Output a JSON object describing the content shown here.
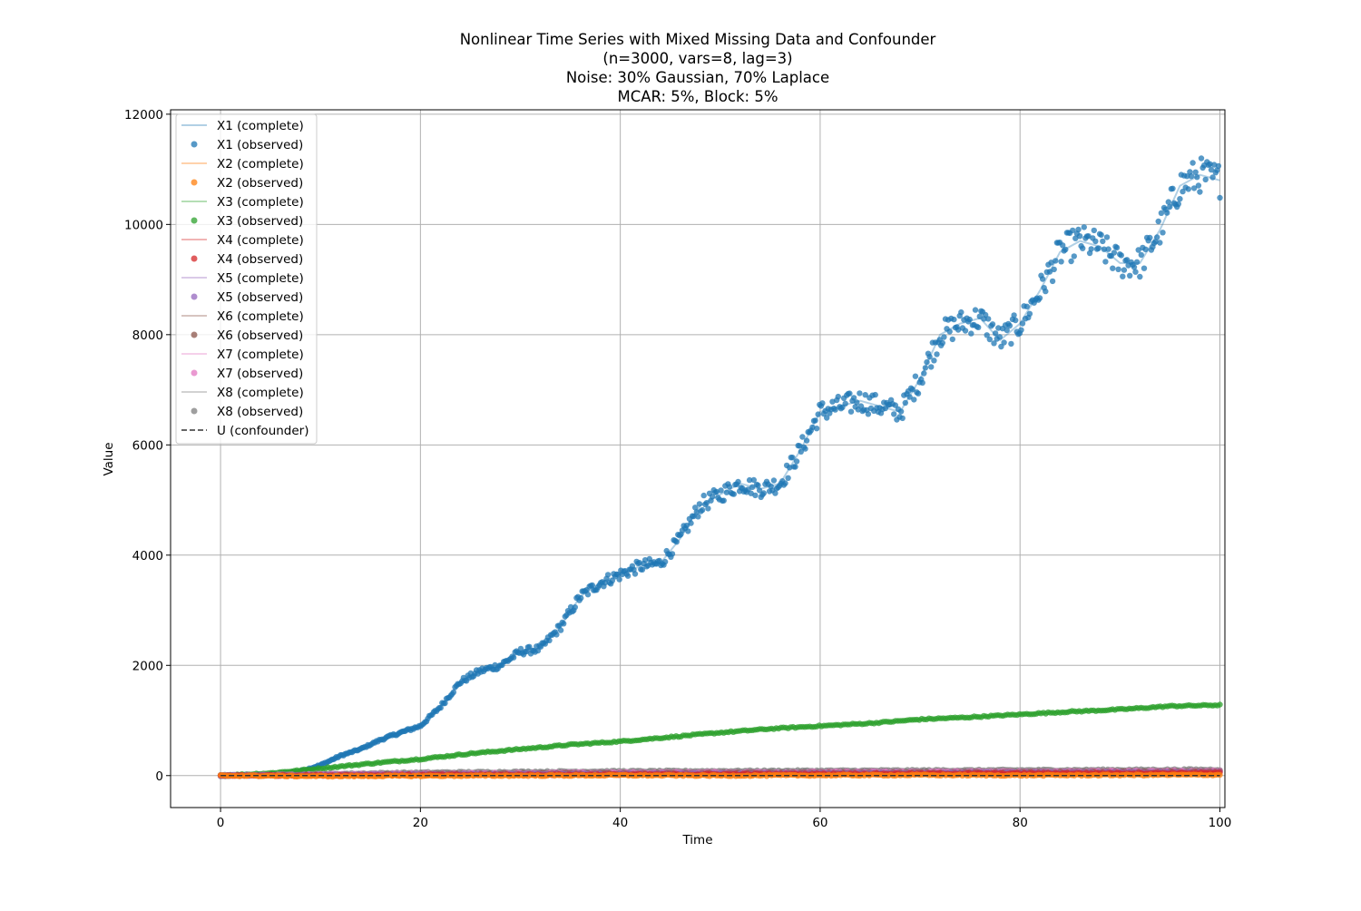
{
  "chart_data": {
    "type": "scatter",
    "title_lines": [
      "Nonlinear Time Series with Mixed Missing Data and Confounder",
      "(n=3000, vars=8, lag=3)",
      "Noise: 30% Gaussian, 70% Laplace",
      "MCAR: 5%, Block: 5%"
    ],
    "xlabel": "Time",
    "ylabel": "Value",
    "xlim": [
      -5,
      100.5
    ],
    "ylim": [
      -580,
      12080
    ],
    "xticks": [
      0,
      20,
      40,
      60,
      80,
      100
    ],
    "yticks": [
      0,
      2000,
      4000,
      6000,
      8000,
      10000,
      12000
    ],
    "grid": true,
    "legend_position": "upper-left",
    "legend": [
      {
        "label": "X1 (complete)",
        "kind": "line",
        "color": "#1f77b4"
      },
      {
        "label": "X1 (observed)",
        "kind": "marker",
        "color": "#1f77b4"
      },
      {
        "label": "X2 (complete)",
        "kind": "line",
        "color": "#ff7f0e"
      },
      {
        "label": "X2 (observed)",
        "kind": "marker",
        "color": "#ff7f0e"
      },
      {
        "label": "X3 (complete)",
        "kind": "line",
        "color": "#2ca02c"
      },
      {
        "label": "X3 (observed)",
        "kind": "marker",
        "color": "#2ca02c"
      },
      {
        "label": "X4 (complete)",
        "kind": "line",
        "color": "#d62728"
      },
      {
        "label": "X4 (observed)",
        "kind": "marker",
        "color": "#d62728"
      },
      {
        "label": "X5 (complete)",
        "kind": "line",
        "color": "#9467bd"
      },
      {
        "label": "X5 (observed)",
        "kind": "marker",
        "color": "#9467bd"
      },
      {
        "label": "X6 (complete)",
        "kind": "line",
        "color": "#8c564b"
      },
      {
        "label": "X6 (observed)",
        "kind": "marker",
        "color": "#8c564b"
      },
      {
        "label": "X7 (complete)",
        "kind": "line",
        "color": "#e377c2"
      },
      {
        "label": "X7 (observed)",
        "kind": "marker",
        "color": "#e377c2"
      },
      {
        "label": "X8 (complete)",
        "kind": "line",
        "color": "#7f7f7f"
      },
      {
        "label": "X8 (observed)",
        "kind": "marker",
        "color": "#7f7f7f"
      },
      {
        "label": "U (confounder)",
        "kind": "dashed",
        "color": "#333333"
      }
    ],
    "series": [
      {
        "name": "X1",
        "color": "#1f77b4",
        "x": [
          0,
          2,
          4,
          6,
          8,
          10,
          12,
          14,
          16,
          18,
          20,
          22,
          24,
          26,
          28,
          30,
          32,
          34,
          36,
          38,
          40,
          42,
          44,
          46,
          48,
          50,
          52,
          54,
          56,
          58,
          60,
          62,
          64,
          66,
          68,
          70,
          72,
          74,
          76,
          78,
          80,
          82,
          84,
          86,
          88,
          90,
          92,
          94,
          96,
          98,
          100
        ],
        "y": [
          0,
          5,
          15,
          35,
          80,
          190,
          360,
          480,
          650,
          780,
          900,
          1250,
          1700,
          1900,
          2000,
          2250,
          2300,
          2700,
          3250,
          3500,
          3650,
          3800,
          3850,
          4300,
          4900,
          5100,
          5300,
          5200,
          5300,
          5900,
          6600,
          6700,
          6800,
          6700,
          6600,
          7200,
          8000,
          8200,
          8300,
          7900,
          8200,
          8800,
          9500,
          9700,
          9600,
          9300,
          9300,
          9900,
          10700,
          10900,
          10800
        ]
      },
      {
        "name": "X3",
        "color": "#2ca02c",
        "x": [
          0,
          5,
          10,
          15,
          20,
          25,
          30,
          35,
          40,
          45,
          50,
          55,
          60,
          65,
          70,
          75,
          80,
          85,
          90,
          95,
          100
        ],
        "y": [
          0,
          45,
          130,
          220,
          300,
          400,
          480,
          560,
          620,
          700,
          780,
          850,
          900,
          950,
          1020,
          1060,
          1110,
          1160,
          1200,
          1260,
          1280
        ]
      },
      {
        "name": "X8",
        "color": "#7f7f7f",
        "x": [
          0,
          10,
          20,
          30,
          40,
          50,
          60,
          70,
          80,
          90,
          100
        ],
        "y": [
          0,
          30,
          55,
          70,
          80,
          85,
          90,
          95,
          100,
          105,
          110
        ]
      },
      {
        "name": "X7",
        "color": "#e377c2",
        "x": [
          0,
          10,
          20,
          30,
          40,
          50,
          60,
          70,
          80,
          90,
          100
        ],
        "y": [
          0,
          20,
          35,
          45,
          55,
          60,
          65,
          70,
          75,
          80,
          85
        ]
      },
      {
        "name": "X6",
        "color": "#8c564b",
        "x": [
          0,
          10,
          20,
          30,
          40,
          50,
          60,
          70,
          80,
          90,
          100
        ],
        "y": [
          0,
          15,
          25,
          35,
          40,
          45,
          50,
          55,
          60,
          65,
          70
        ]
      },
      {
        "name": "X5",
        "color": "#9467bd",
        "x": [
          0,
          10,
          20,
          30,
          40,
          50,
          60,
          70,
          80,
          90,
          100
        ],
        "y": [
          0,
          10,
          20,
          25,
          30,
          35,
          40,
          45,
          50,
          55,
          60
        ]
      },
      {
        "name": "X4",
        "color": "#d62728",
        "x": [
          0,
          10,
          20,
          30,
          40,
          50,
          60,
          70,
          80,
          90,
          100
        ],
        "y": [
          0,
          5,
          10,
          15,
          20,
          25,
          30,
          35,
          40,
          45,
          50
        ]
      },
      {
        "name": "X2",
        "color": "#ff7f0e",
        "x": [
          0,
          10,
          20,
          30,
          40,
          50,
          60,
          70,
          80,
          90,
          100
        ],
        "y": [
          0,
          -10,
          -5,
          0,
          5,
          0,
          5,
          10,
          5,
          10,
          15
        ]
      },
      {
        "name": "U",
        "color": "#333333",
        "style": "dashed",
        "x": [
          0,
          100
        ],
        "y": [
          0,
          0
        ]
      }
    ]
  }
}
